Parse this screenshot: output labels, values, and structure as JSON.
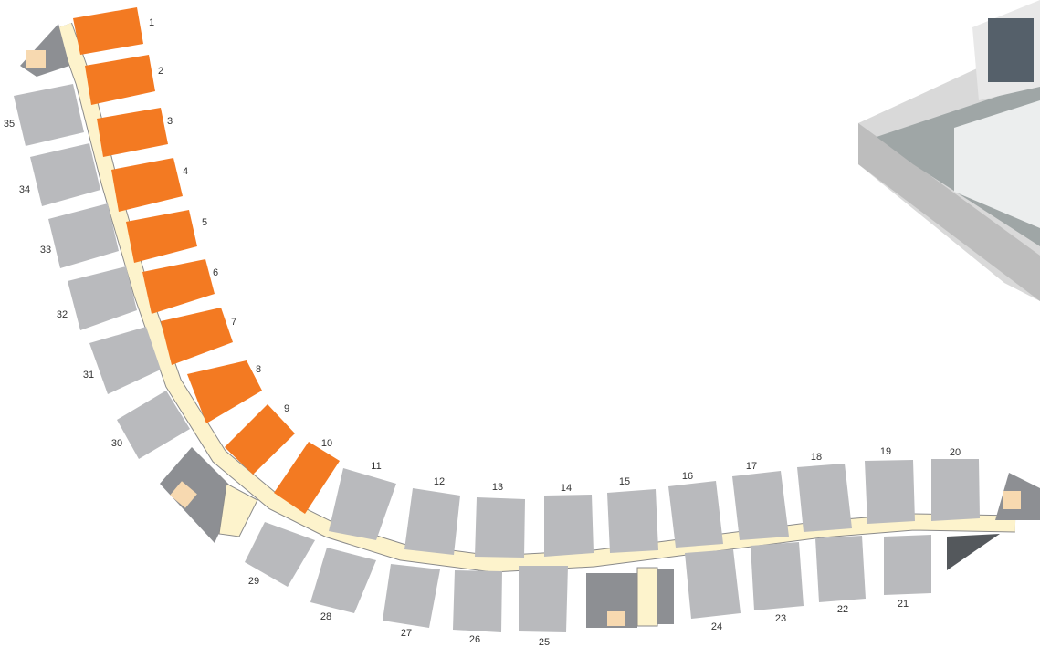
{
  "units": [
    {
      "label": "1",
      "color": "#f37a22"
    },
    {
      "label": "2",
      "color": "#f37a22"
    },
    {
      "label": "3",
      "color": "#f37a22"
    },
    {
      "label": "4",
      "color": "#f37a22"
    },
    {
      "label": "5",
      "color": "#f37a22"
    },
    {
      "label": "6",
      "color": "#f37a22"
    },
    {
      "label": "7",
      "color": "#f37a22"
    },
    {
      "label": "8",
      "color": "#f37a22"
    },
    {
      "label": "9",
      "color": "#f37a22"
    },
    {
      "label": "10",
      "color": "#f37a22"
    },
    {
      "label": "11",
      "color": "#b9babd"
    },
    {
      "label": "12",
      "color": "#b9babd"
    },
    {
      "label": "13",
      "color": "#b9babd"
    },
    {
      "label": "14",
      "color": "#b9babd"
    },
    {
      "label": "15",
      "color": "#b9babd"
    },
    {
      "label": "16",
      "color": "#b9babd"
    },
    {
      "label": "17",
      "color": "#b9babd"
    },
    {
      "label": "18",
      "color": "#b9babd"
    },
    {
      "label": "19",
      "color": "#b9babd"
    },
    {
      "label": "20",
      "color": "#b9babd"
    },
    {
      "label": "21",
      "color": "#b9babd"
    },
    {
      "label": "22",
      "color": "#b9babd"
    },
    {
      "label": "23",
      "color": "#b9babd"
    },
    {
      "label": "24",
      "color": "#b9babd"
    },
    {
      "label": "25",
      "color": "#b9babd"
    },
    {
      "label": "26",
      "color": "#b9babd"
    },
    {
      "label": "27",
      "color": "#b9babd"
    },
    {
      "label": "28",
      "color": "#b9babd"
    },
    {
      "label": "29",
      "color": "#b9babd"
    },
    {
      "label": "30",
      "color": "#b9babd"
    },
    {
      "label": "31",
      "color": "#b9babd"
    },
    {
      "label": "32",
      "color": "#b9babd"
    },
    {
      "label": "33",
      "color": "#b9babd"
    },
    {
      "label": "34",
      "color": "#b9babd"
    },
    {
      "label": "35",
      "color": "#b9babd"
    }
  ]
}
